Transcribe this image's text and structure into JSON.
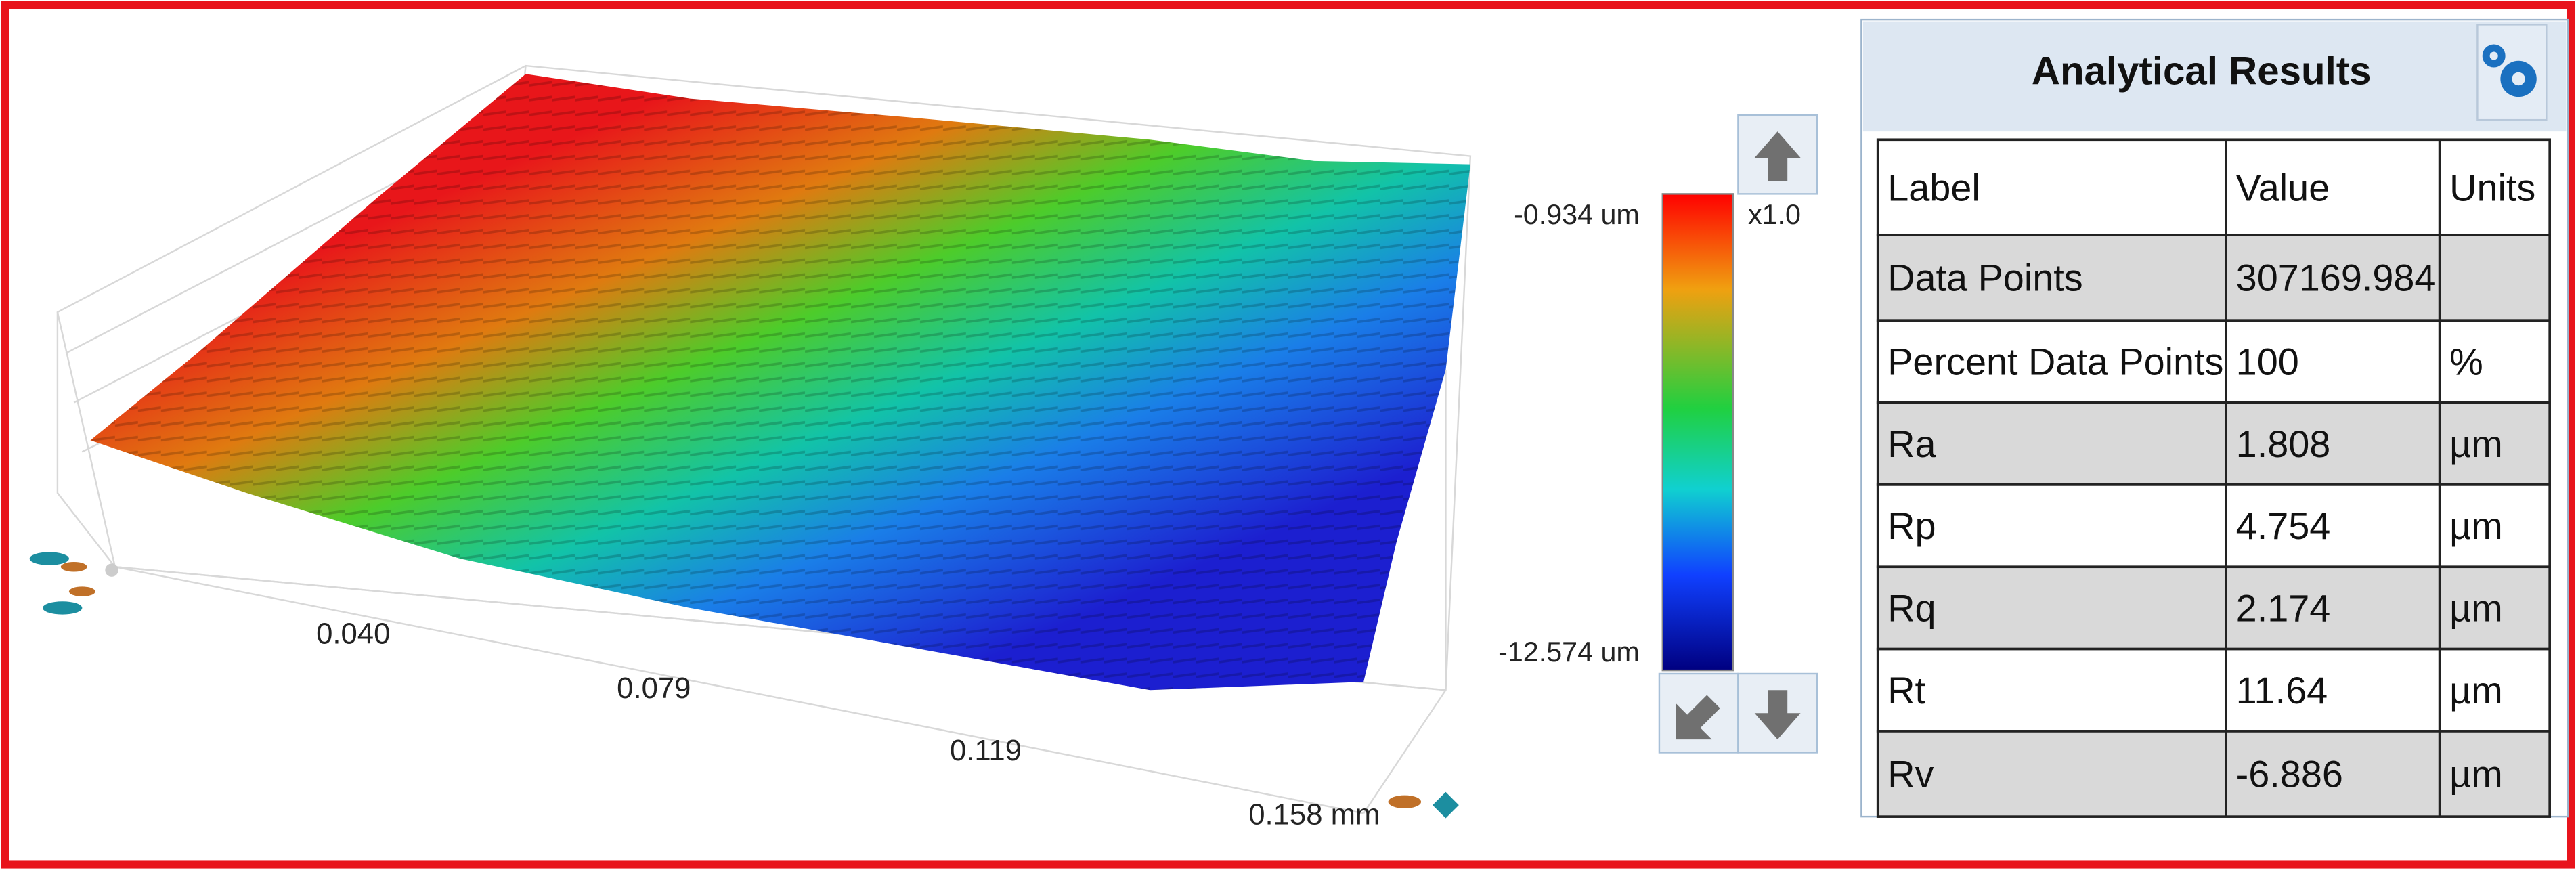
{
  "plot": {
    "axis_labels": [
      "0.040",
      "0.079",
      "0.119",
      "0.158 mm"
    ],
    "colorbar": {
      "max_label": "-0.934 um",
      "min_label": "-12.574 um",
      "zoom": "x1.0"
    }
  },
  "results": {
    "title": "Analytical Results",
    "columns": [
      "Label",
      "Value",
      "Units"
    ],
    "rows": [
      [
        "Data Points",
        307169.984
      ],
      [
        "Percent Data Points",
        100,
        "%"
      ],
      [
        "Ra",
        1.808,
        "µm"
      ],
      [
        "Rp",
        4.754,
        "µm"
      ],
      [
        "Rq",
        2.174,
        "µm"
      ],
      [
        "Rt",
        11.64,
        "µm"
      ],
      [
        "Rv",
        -6.886,
        "µm"
      ]
    ]
  }
}
